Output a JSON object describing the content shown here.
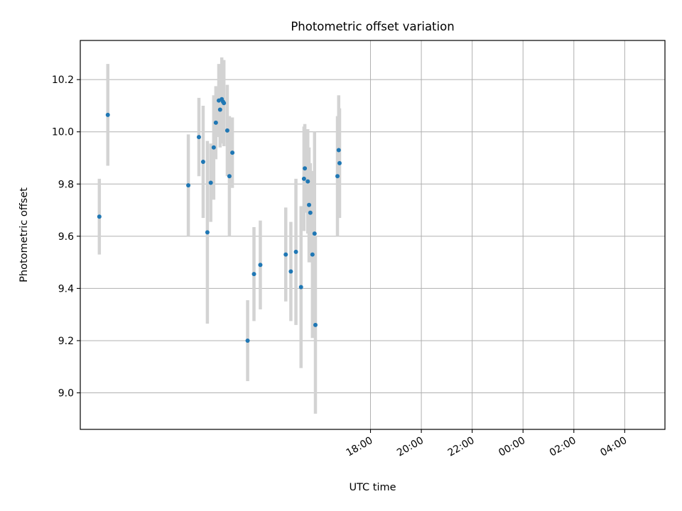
{
  "chart_data": {
    "type": "scatter",
    "title": "Photometric offset variation",
    "xlabel": "UTC time",
    "ylabel": "Photometric offset",
    "xlim_minutes": [
      -1045,
      335
    ],
    "ylim": [
      8.86,
      10.35
    ],
    "grid": true,
    "x_ticks": [
      {
        "minutes": -360,
        "label": "18:00"
      },
      {
        "minutes": -240,
        "label": "20:00"
      },
      {
        "minutes": -120,
        "label": "22:00"
      },
      {
        "minutes": 0,
        "label": "00:00"
      },
      {
        "minutes": 120,
        "label": "02:00"
      },
      {
        "minutes": 240,
        "label": "04:00"
      }
    ],
    "y_ticks": [
      {
        "value": 9.0,
        "label": "9.0"
      },
      {
        "value": 9.2,
        "label": "9.2"
      },
      {
        "value": 9.4,
        "label": "9.4"
      },
      {
        "value": 9.6,
        "label": "9.6"
      },
      {
        "value": 9.8,
        "label": "9.8"
      },
      {
        "value": 10.0,
        "label": "10.0"
      },
      {
        "value": 10.2,
        "label": "10.2"
      }
    ],
    "x_axis_note": "x = minutes relative to 00:00 UTC",
    "colors": {
      "point": "#1f77b4",
      "errorbar": "#d3d3d3",
      "grid": "#b0b0b0"
    },
    "points": [
      {
        "x": -1000,
        "y": 9.675,
        "err": 0.145
      },
      {
        "x": -980,
        "y": 10.065,
        "err": 0.195
      },
      {
        "x": -790,
        "y": 9.795,
        "err": 0.195
      },
      {
        "x": -765,
        "y": 9.98,
        "err": 0.15
      },
      {
        "x": -755,
        "y": 9.885,
        "err": 0.215
      },
      {
        "x": -745,
        "y": 9.615,
        "err": 0.35
      },
      {
        "x": -737,
        "y": 9.805,
        "err": 0.15
      },
      {
        "x": -730,
        "y": 9.94,
        "err": 0.2
      },
      {
        "x": -725,
        "y": 10.035,
        "err": 0.14
      },
      {
        "x": -718,
        "y": 10.12,
        "err": 0.14
      },
      {
        "x": -715,
        "y": 10.085,
        "err": 0.145
      },
      {
        "x": -711,
        "y": 10.125,
        "err": 0.16
      },
      {
        "x": -708,
        "y": 10.115,
        "err": 0.16
      },
      {
        "x": -706,
        "y": 10.11,
        "err": 0.165
      },
      {
        "x": -698,
        "y": 10.005,
        "err": 0.175
      },
      {
        "x": -693,
        "y": 9.83,
        "err": 0.23
      },
      {
        "x": -686,
        "y": 9.92,
        "err": 0.135
      },
      {
        "x": -650,
        "y": 9.2,
        "err": 0.155
      },
      {
        "x": -635,
        "y": 9.455,
        "err": 0.18
      },
      {
        "x": -620,
        "y": 9.49,
        "err": 0.17
      },
      {
        "x": -560,
        "y": 9.53,
        "err": 0.18
      },
      {
        "x": -548,
        "y": 9.465,
        "err": 0.19
      },
      {
        "x": -536,
        "y": 9.54,
        "err": 0.28
      },
      {
        "x": -524,
        "y": 9.405,
        "err": 0.31
      },
      {
        "x": -517,
        "y": 9.82,
        "err": 0.2
      },
      {
        "x": -515,
        "y": 9.86,
        "err": 0.17
      },
      {
        "x": -508,
        "y": 9.81,
        "err": 0.2
      },
      {
        "x": -505,
        "y": 9.72,
        "err": 0.22
      },
      {
        "x": -502,
        "y": 9.69,
        "err": 0.19
      },
      {
        "x": -497,
        "y": 9.53,
        "err": 0.32
      },
      {
        "x": -492,
        "y": 9.61,
        "err": 0.39
      },
      {
        "x": -490,
        "y": 9.26,
        "err": 0.34
      },
      {
        "x": -438,
        "y": 9.83,
        "err": 0.23
      },
      {
        "x": -435,
        "y": 9.93,
        "err": 0.21
      },
      {
        "x": -433,
        "y": 9.88,
        "err": 0.21
      }
    ]
  }
}
